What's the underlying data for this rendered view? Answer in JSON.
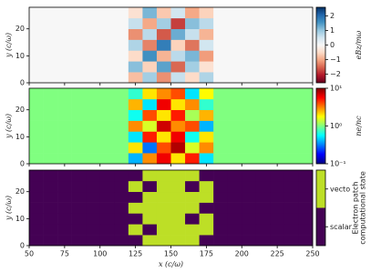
{
  "chart_data": [
    {
      "type": "heatmap",
      "colormap": "RdBu",
      "ylabel": "y (c/ω)",
      "colorbar_label": "eBz/mω",
      "xbins": [
        50,
        60,
        70,
        80,
        90,
        100,
        110,
        120,
        130,
        140,
        150,
        160,
        170,
        180,
        190,
        200,
        210,
        220,
        230,
        240,
        250
      ],
      "ybins": [
        0,
        4,
        8,
        12,
        16,
        20,
        24,
        28
      ],
      "ylim": [
        0,
        28
      ],
      "yticks": [
        0,
        10,
        20
      ],
      "clim": [
        -2.6,
        2.6
      ],
      "cticks": [
        {
          "value": -2,
          "label": "−2"
        },
        {
          "value": -1,
          "label": "−1"
        },
        0,
        1,
        2
      ],
      "z": [
        [
          0,
          0,
          0,
          0,
          0,
          0,
          0,
          -0.8,
          0.9,
          -1.2,
          0.6,
          -0.5,
          0.8,
          0,
          0,
          0,
          0,
          0,
          0,
          0
        ],
        [
          0,
          0,
          0,
          0,
          0,
          0,
          0,
          1.1,
          -0.6,
          1.4,
          -1.5,
          0.9,
          -0.4,
          0,
          0,
          0,
          0,
          0,
          0,
          0
        ],
        [
          0,
          0,
          0,
          0,
          0,
          0,
          0,
          -0.5,
          1.6,
          -0.9,
          0.7,
          1.2,
          -1.1,
          0,
          0,
          0,
          0,
          0,
          0,
          0
        ],
        [
          0,
          0,
          0,
          0,
          0,
          0,
          0,
          0.8,
          -1.3,
          1.8,
          -0.6,
          -1.4,
          0.5,
          0,
          0,
          0,
          0,
          0,
          0,
          0
        ],
        [
          0,
          0,
          0,
          0,
          0,
          0,
          0,
          -1.2,
          0.7,
          -1.6,
          1.3,
          0.6,
          -0.9,
          0,
          0,
          0,
          0,
          0,
          0,
          0
        ],
        [
          0,
          0,
          0,
          0,
          0,
          0,
          0,
          0.6,
          -1,
          0.9,
          -1.8,
          1.1,
          0.7,
          0,
          0,
          0,
          0,
          0,
          0,
          0
        ],
        [
          0,
          0,
          0,
          0,
          0,
          0,
          0,
          -0.4,
          1.2,
          -0.7,
          0.5,
          -1,
          -0.6,
          0,
          0,
          0,
          0,
          0,
          0,
          0
        ]
      ]
    },
    {
      "type": "heatmap",
      "colormap": "jet",
      "log_color": true,
      "ylabel": "y (c/ω)",
      "colorbar_label": "ne/nc",
      "xbins": [
        50,
        60,
        70,
        80,
        90,
        100,
        110,
        120,
        130,
        140,
        150,
        160,
        170,
        180,
        190,
        200,
        210,
        220,
        230,
        240,
        250
      ],
      "ybins": [
        0,
        4,
        8,
        12,
        16,
        20,
        24,
        28
      ],
      "ylim": [
        0,
        28
      ],
      "yticks": [
        0,
        10,
        20
      ],
      "clim": [
        0.1,
        10
      ],
      "cticks": [
        {
          "value": 0.1,
          "label": "10⁻¹"
        },
        {
          "value": 1,
          "label": "10⁰"
        },
        {
          "value": 10,
          "label": "10¹"
        }
      ],
      "z": [
        [
          1,
          1,
          1,
          1,
          1,
          1,
          1,
          0.4,
          3,
          6,
          2,
          5,
          0.5,
          1,
          1,
          1,
          1,
          1,
          1,
          1
        ],
        [
          1,
          1,
          1,
          1,
          1,
          1,
          1,
          2,
          0.3,
          4,
          8,
          1.5,
          3,
          1,
          1,
          1,
          1,
          1,
          1,
          1
        ],
        [
          1,
          1,
          1,
          1,
          1,
          1,
          1,
          0.5,
          5,
          2,
          6,
          0.6,
          2,
          1,
          1,
          1,
          1,
          1,
          1,
          1
        ],
        [
          1,
          1,
          1,
          1,
          1,
          1,
          1,
          3,
          1.5,
          7,
          3,
          4,
          0.4,
          1,
          1,
          1,
          1,
          1,
          1,
          1
        ],
        [
          1,
          1,
          1,
          1,
          1,
          1,
          1,
          0.6,
          4,
          2,
          5,
          1.2,
          2.5,
          1,
          1,
          1,
          1,
          1,
          1,
          1
        ],
        [
          1,
          1,
          1,
          1,
          1,
          1,
          1,
          2.5,
          0.5,
          6,
          2,
          3,
          0.7,
          1,
          1,
          1,
          1,
          1,
          1,
          1
        ],
        [
          1,
          1,
          1,
          1,
          1,
          1,
          1,
          0.7,
          2,
          3,
          4,
          0.5,
          1.8,
          1,
          1,
          1,
          1,
          1,
          1,
          1
        ]
      ]
    },
    {
      "type": "heatmap",
      "colormap": "binary_viridis",
      "ylabel": "y (c/ω)",
      "xlabel": "x (c/ω)",
      "colorbar_label": [
        "Electron patch",
        "computational state"
      ],
      "xbins": [
        50,
        60,
        70,
        80,
        90,
        100,
        110,
        120,
        130,
        140,
        150,
        160,
        170,
        180,
        190,
        200,
        210,
        220,
        230,
        240,
        250
      ],
      "ybins": [
        0,
        4,
        8,
        12,
        16,
        20,
        24,
        28
      ],
      "ylim": [
        0,
        28
      ],
      "yticks": [
        0,
        10,
        20
      ],
      "xlim": [
        50,
        250
      ],
      "xticks": [
        50,
        75,
        100,
        125,
        150,
        175,
        200,
        225,
        250
      ],
      "clim": [
        -0.5,
        1.5
      ],
      "cticks": [
        {
          "value": 0,
          "label": "scalar"
        },
        {
          "value": 1,
          "label": "vecto"
        }
      ],
      "z": [
        [
          0,
          0,
          0,
          0,
          0,
          0,
          0,
          0,
          1,
          1,
          1,
          1,
          0,
          0,
          0,
          0,
          0,
          0,
          0,
          0
        ],
        [
          0,
          0,
          0,
          0,
          0,
          0,
          0,
          1,
          0,
          1,
          1,
          1,
          1,
          0,
          0,
          0,
          0,
          0,
          0,
          0
        ],
        [
          0,
          0,
          0,
          0,
          0,
          0,
          0,
          0,
          1,
          1,
          1,
          0,
          1,
          0,
          0,
          0,
          0,
          0,
          0,
          0
        ],
        [
          0,
          0,
          0,
          0,
          0,
          0,
          0,
          1,
          1,
          1,
          1,
          1,
          0,
          0,
          0,
          0,
          0,
          0,
          0,
          0
        ],
        [
          0,
          0,
          0,
          0,
          0,
          0,
          0,
          0,
          1,
          1,
          1,
          1,
          1,
          0,
          0,
          0,
          0,
          0,
          0,
          0
        ],
        [
          0,
          0,
          0,
          0,
          0,
          0,
          0,
          1,
          0,
          1,
          1,
          0,
          1,
          0,
          0,
          0,
          0,
          0,
          0,
          0
        ],
        [
          0,
          0,
          0,
          0,
          0,
          0,
          0,
          0,
          1,
          1,
          1,
          1,
          0,
          0,
          0,
          0,
          0,
          0,
          0,
          0
        ]
      ]
    }
  ]
}
